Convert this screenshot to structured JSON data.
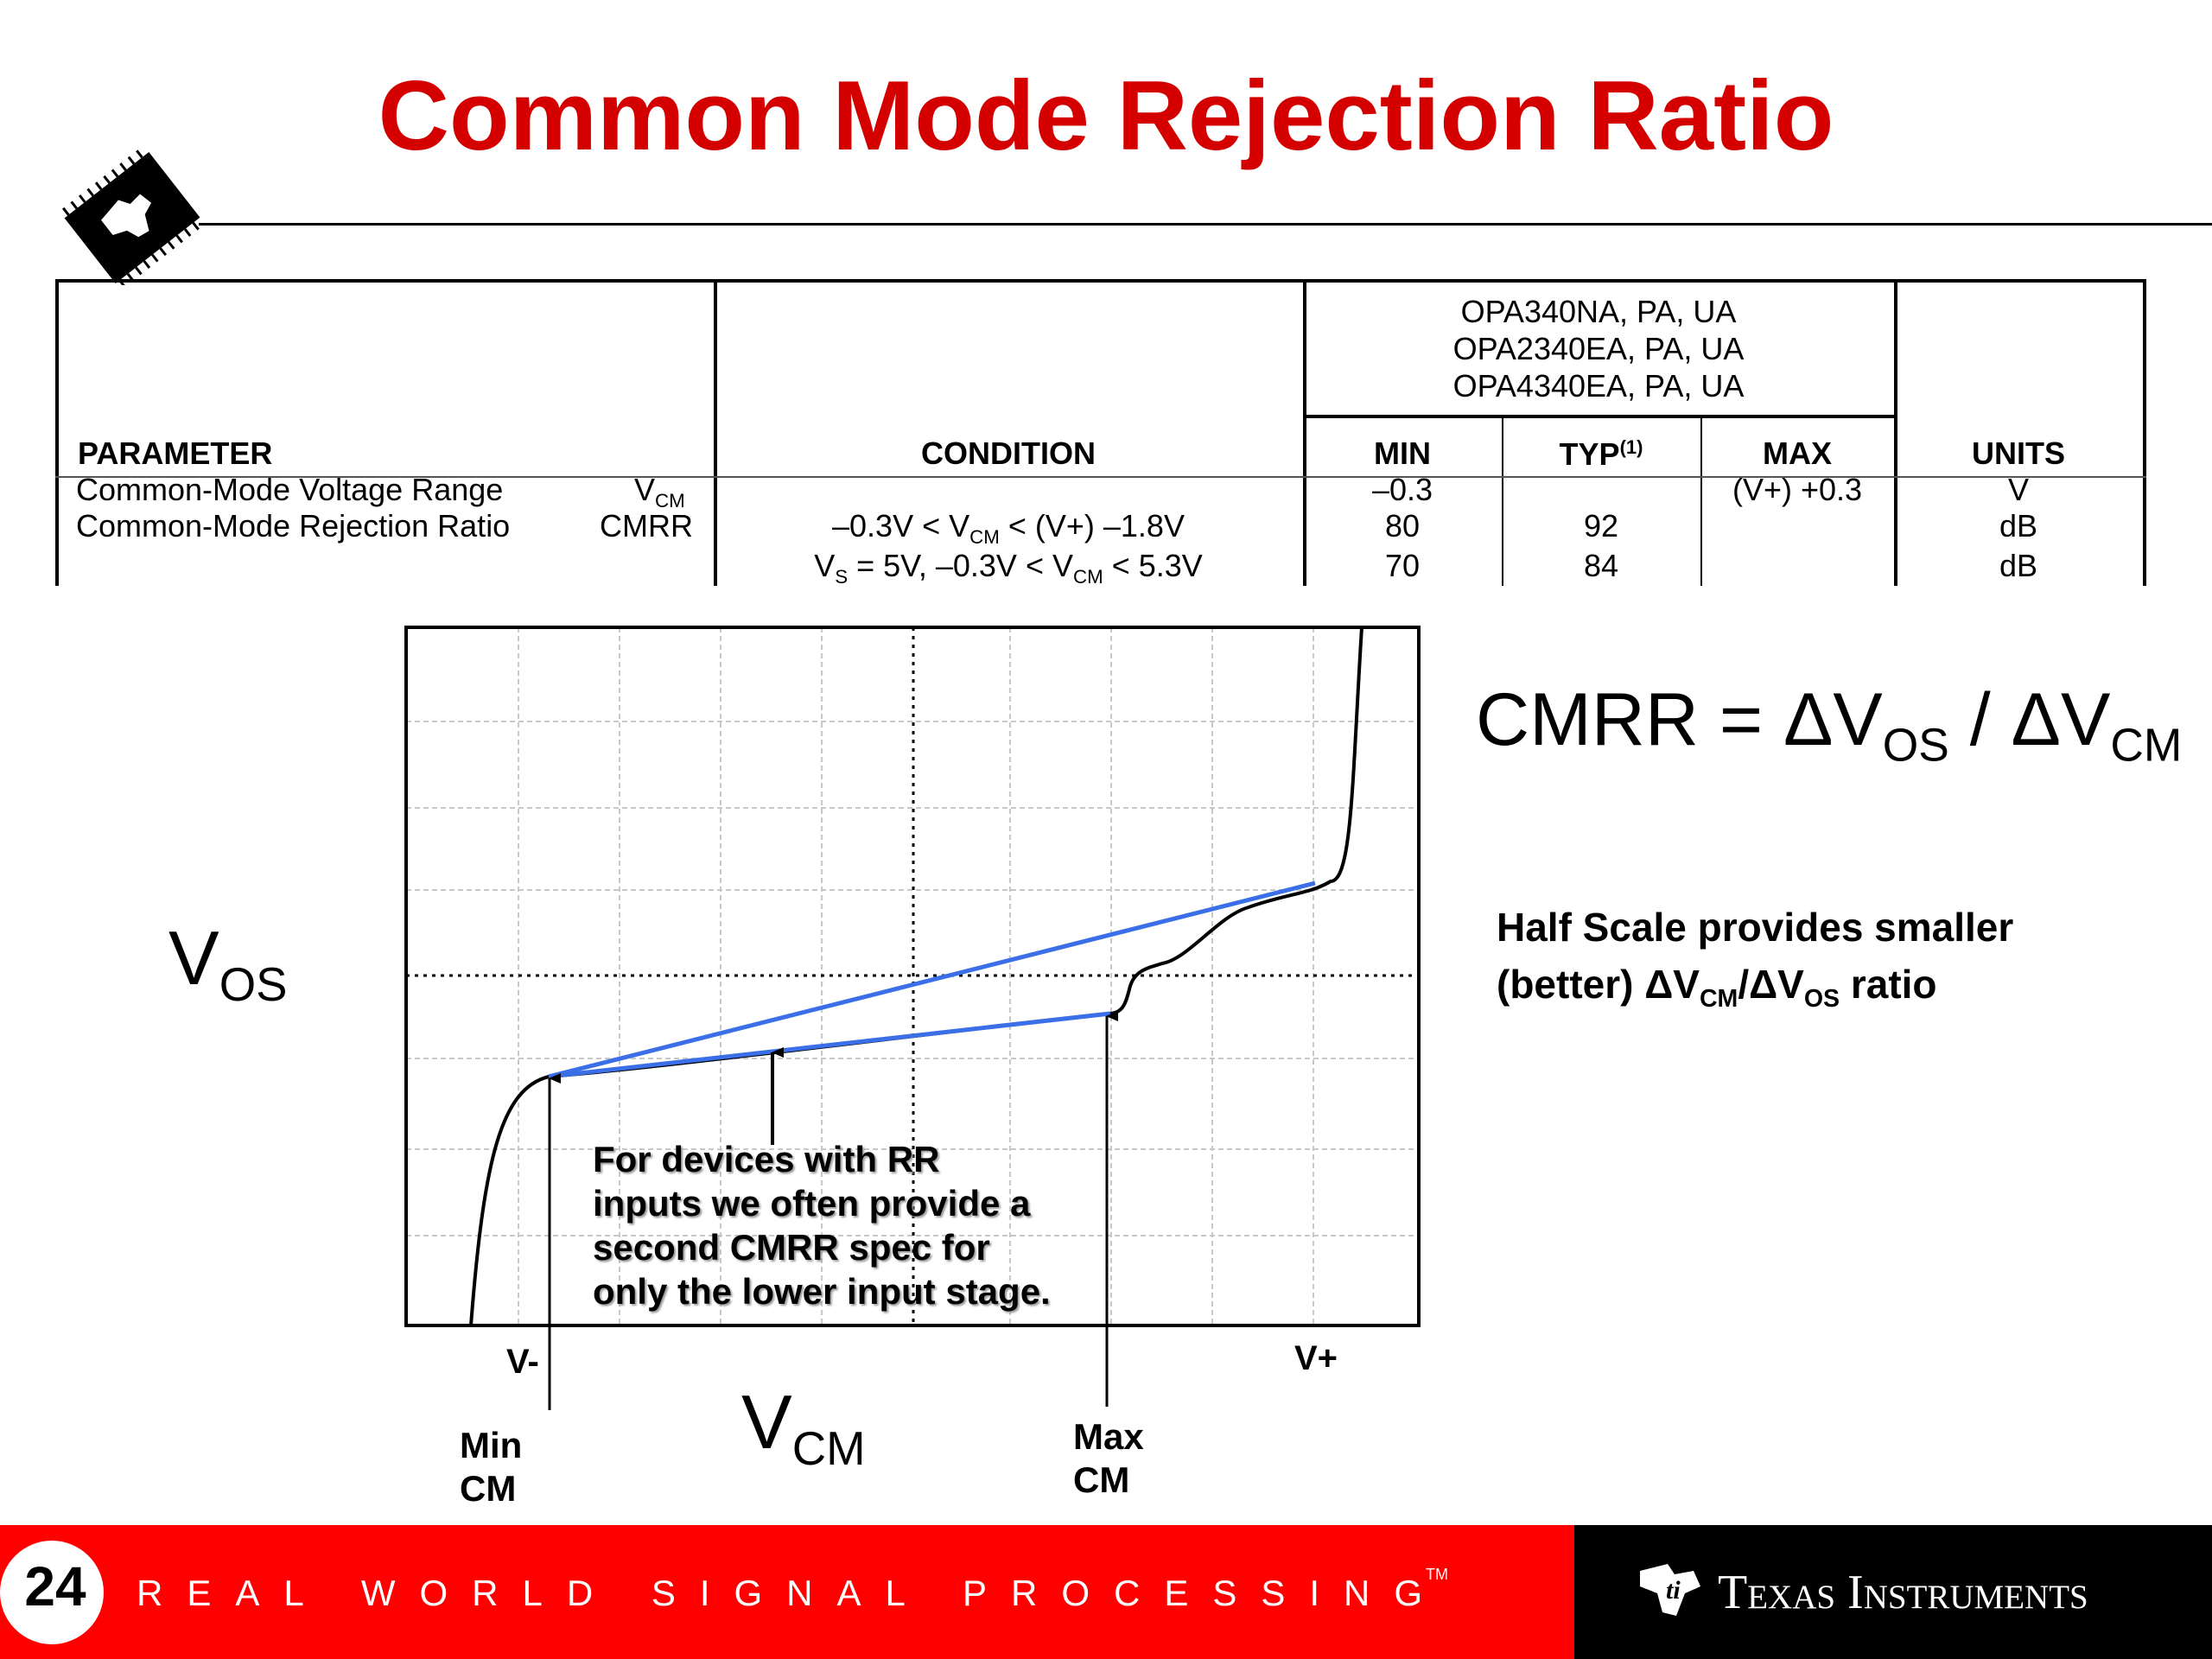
{
  "slide": {
    "title": "Common Mode Rejection Ratio",
    "page_number": "24",
    "footer_tagline": "REAL WORLD SIGNAL PROCESSING",
    "footer_tm": "TM",
    "brand": "Texas Instruments"
  },
  "spec_table": {
    "device_header": [
      "OPA340NA, PA, UA",
      "OPA2340EA, PA, UA",
      "OPA4340EA, PA, UA"
    ],
    "columns": {
      "parameter": "PARAMETER",
      "condition": "CONDITION",
      "min": "MIN",
      "typ": "TYP",
      "typ_note": "(1)",
      "max": "MAX",
      "units": "UNITS"
    },
    "rows": [
      {
        "parameter": "Common-Mode Voltage Range",
        "symbol": "V",
        "symbol_sub": "CM",
        "condition": "",
        "min": "–0.3",
        "typ": "",
        "max": "(V+) +0.3",
        "units": "V"
      },
      {
        "parameter": "Common-Mode Rejection Ratio",
        "symbol": "CMRR",
        "symbol_sub": "",
        "condition_parts": [
          "–0.3V < V",
          "CM",
          " < (V+) –1.8V"
        ],
        "min": "80",
        "typ": "92",
        "max": "",
        "units": "dB"
      },
      {
        "parameter": "",
        "symbol": "",
        "symbol_sub": "",
        "condition_parts": [
          "V",
          "S",
          " = 5V, –0.3V < V",
          "CM",
          " < 5.3V"
        ],
        "min": "70",
        "typ": "84",
        "max": "",
        "units": "dB"
      }
    ]
  },
  "diagram": {
    "y_axis_label": "V",
    "y_axis_label_sub": "OS",
    "x_axis_label": "V",
    "x_axis_label_sub": "CM",
    "x_left_marker": "V-",
    "x_right_marker": "V+",
    "min_cm_label": [
      "Min",
      "CM"
    ],
    "max_cm_label": [
      "Max",
      "CM"
    ],
    "annotation": [
      "For devices with RR",
      "inputs we often provide a",
      "second CMRR spec for",
      "only the lower input stage."
    ],
    "formula_parts": [
      "CMRR = ΔV",
      "OS",
      " / ΔV",
      "CM"
    ],
    "note_line1": "Half Scale provides smaller",
    "note_line2_parts": [
      "(better)  ΔV",
      "CM",
      "/ΔV",
      "OS",
      " ratio"
    ],
    "colors": {
      "curve": "#000000",
      "fit_lines": "#3a6fe8",
      "grid": "#c8c8c8",
      "title": "#d40000",
      "footer_red": "#ff0000"
    }
  }
}
